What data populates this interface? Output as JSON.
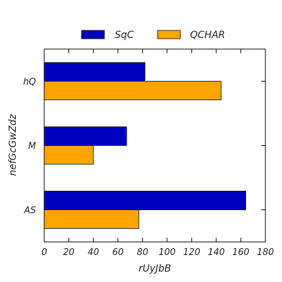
{
  "chart_data": {
    "type": "bar",
    "orientation": "horizontal",
    "categories": [
      "AS",
      "M",
      "hQ"
    ],
    "series": [
      {
        "name": "SqC",
        "values": [
          164,
          67,
          82
        ],
        "color": "#0000c0"
      },
      {
        "name": "QCHAR",
        "values": [
          77,
          40,
          144
        ],
        "color": "#ffa500"
      }
    ],
    "xlabel": "rUyJbB",
    "ylabel": "nefGcGwZdz",
    "xlim": [
      0,
      180
    ],
    "xticks": [
      "0",
      "20",
      "40",
      "60",
      "80",
      "100",
      "120",
      "140",
      "160",
      "180"
    ],
    "grid": false,
    "legend_position": "top-center"
  }
}
